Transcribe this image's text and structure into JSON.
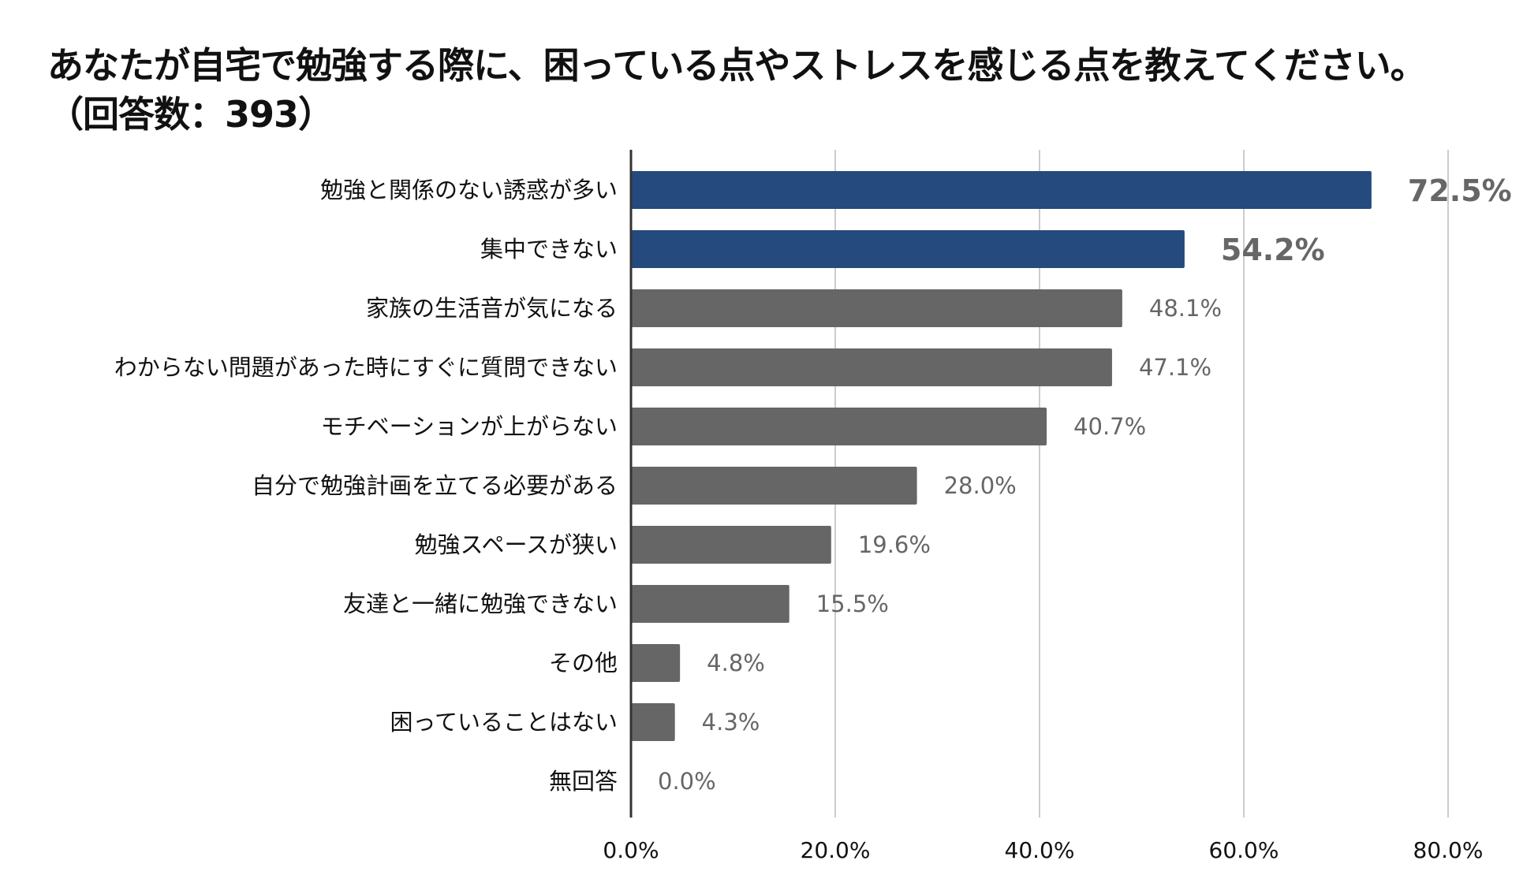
{
  "title_line1": "あなたが自宅で勉強する際に、困っている点やストレスを感じる点を教えてください。",
  "title_line2": "（回答数：393）",
  "colors": {
    "highlight": "#244A7E",
    "default": "#666666",
    "grid": "#CCCCCC",
    "axis": "#333333"
  },
  "chart_data": {
    "type": "bar",
    "orientation": "horizontal",
    "categories": [
      "勉強と関係のない誘惑が多い",
      "集中できない",
      "家族の生活音が気になる",
      "わからない問題があった時にすぐに質問できない",
      "モチベーションが上がらない",
      "自分で勉強計画を立てる必要がある",
      "勉強スペースが狭い",
      "友達と一緒に勉強できない",
      "その他",
      "困っていることはない",
      "無回答"
    ],
    "values": [
      72.5,
      54.2,
      48.1,
      47.1,
      40.7,
      28.0,
      19.6,
      15.5,
      4.8,
      4.3,
      0.0
    ],
    "value_labels": [
      "72.5%",
      "54.2%",
      "48.1%",
      "47.1%",
      "40.7%",
      "28.0%",
      "19.6%",
      "15.5%",
      "4.8%",
      "4.3%",
      "0.0%"
    ],
    "highlighted": [
      true,
      true,
      false,
      false,
      false,
      false,
      false,
      false,
      false,
      false,
      false
    ],
    "xlim": [
      0,
      80
    ],
    "xticks": [
      0,
      20,
      40,
      60,
      80
    ],
    "xtick_labels": [
      "0.0%",
      "20.0%",
      "40.0%",
      "60.0%",
      "80.0%"
    ],
    "grid": true,
    "legend": "none"
  }
}
